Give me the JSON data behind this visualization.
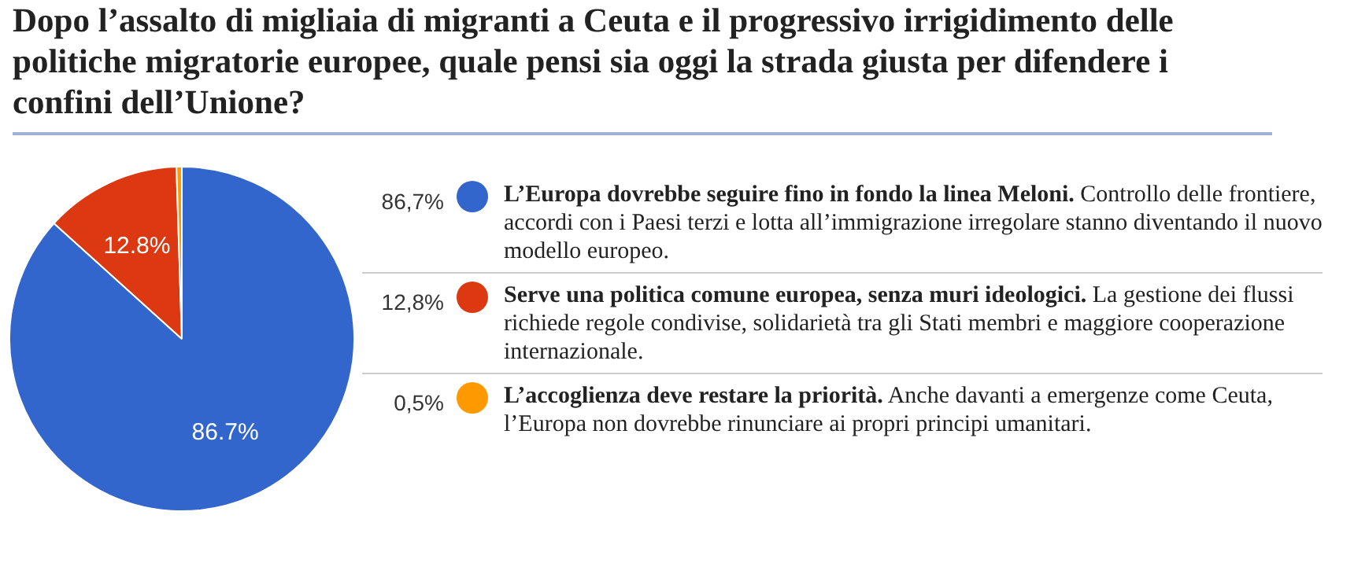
{
  "chart_data": {
    "type": "pie",
    "title": "Dopo l’assalto di migliaia di migranti a Ceuta e il progressivo irrigidimento delle politiche migratorie europee, quale pensi sia oggi la strada giusta per difendere i confini dell’Unione?",
    "categories": [
      "L’Europa dovrebbe seguire fino in fondo la linea Meloni.",
      "Serve una politica comune europea, senza muri ideologici.",
      "L’accoglienza deve restare la priorità."
    ],
    "values": [
      86.7,
      12.8,
      0.5
    ],
    "colors": [
      "#3366cc",
      "#dc3912",
      "#ff9900"
    ],
    "value_labels": [
      "86.7%",
      "12.8%",
      null
    ],
    "legend": "right",
    "annotations": [
      "86,7%",
      "Controllo delle frontiere, accordi con i Paesi terzi e lotta all’immigrazione irregolare stanno diventando il nuovo modello europeo.",
      "12,8%",
      "La gestione dei flussi richiede regole condivise, solidarietà tra gli Stati membri e maggiore cooperazione internazionale.",
      "0,5%",
      "Anche davanti a emergenze come Ceuta, l’Europa non dovrebbe rinunciare ai propri principi umanitari."
    ]
  }
}
